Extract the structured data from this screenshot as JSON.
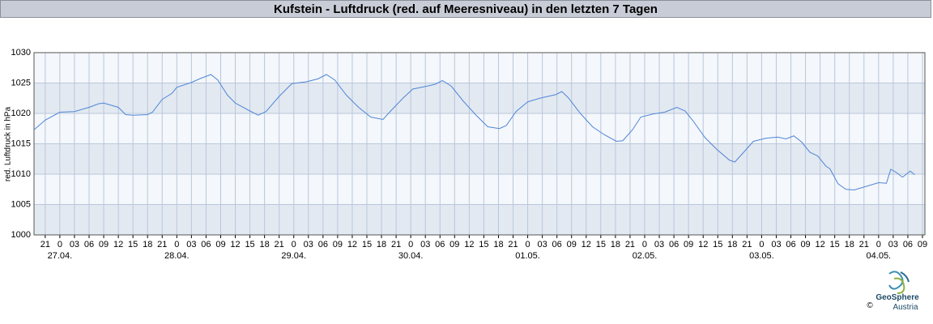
{
  "chart_data": {
    "type": "line",
    "title": "Kufstein - Luftdruck (red. auf Meeresniveau) in den letzten 7 Tagen",
    "y_label": "red. Luftdruck in hPa",
    "ylim": [
      1000,
      1030
    ],
    "yticks": [
      1000,
      1005,
      1010,
      1015,
      1020,
      1025,
      1030
    ],
    "xlim": [
      -5.3,
      177.5
    ],
    "xticks": [
      {
        "value": -3,
        "label": "21"
      },
      {
        "value": 0,
        "label": "0"
      },
      {
        "value": 3,
        "label": "03"
      },
      {
        "value": 6,
        "label": "06"
      },
      {
        "value": 9,
        "label": "09"
      },
      {
        "value": 12,
        "label": "12"
      },
      {
        "value": 15,
        "label": "15"
      },
      {
        "value": 18,
        "label": "18"
      },
      {
        "value": 21,
        "label": "21"
      },
      {
        "value": 24,
        "label": "0"
      },
      {
        "value": 27,
        "label": "03"
      },
      {
        "value": 30,
        "label": "06"
      },
      {
        "value": 33,
        "label": "09"
      },
      {
        "value": 36,
        "label": "12"
      },
      {
        "value": 39,
        "label": "15"
      },
      {
        "value": 42,
        "label": "18"
      },
      {
        "value": 45,
        "label": "21"
      },
      {
        "value": 48,
        "label": "0"
      },
      {
        "value": 51,
        "label": "03"
      },
      {
        "value": 54,
        "label": "06"
      },
      {
        "value": 57,
        "label": "09"
      },
      {
        "value": 60,
        "label": "12"
      },
      {
        "value": 63,
        "label": "15"
      },
      {
        "value": 66,
        "label": "18"
      },
      {
        "value": 69,
        "label": "21"
      },
      {
        "value": 72,
        "label": "0"
      },
      {
        "value": 75,
        "label": "03"
      },
      {
        "value": 78,
        "label": "06"
      },
      {
        "value": 81,
        "label": "09"
      },
      {
        "value": 84,
        "label": "12"
      },
      {
        "value": 87,
        "label": "15"
      },
      {
        "value": 90,
        "label": "18"
      },
      {
        "value": 93,
        "label": "21"
      },
      {
        "value": 96,
        "label": "0"
      },
      {
        "value": 99,
        "label": "03"
      },
      {
        "value": 102,
        "label": "06"
      },
      {
        "value": 105,
        "label": "09"
      },
      {
        "value": 108,
        "label": "12"
      },
      {
        "value": 111,
        "label": "15"
      },
      {
        "value": 114,
        "label": "18"
      },
      {
        "value": 117,
        "label": "21"
      },
      {
        "value": 120,
        "label": "0"
      },
      {
        "value": 123,
        "label": "03"
      },
      {
        "value": 126,
        "label": "06"
      },
      {
        "value": 129,
        "label": "09"
      },
      {
        "value": 132,
        "label": "12"
      },
      {
        "value": 135,
        "label": "15"
      },
      {
        "value": 138,
        "label": "18"
      },
      {
        "value": 141,
        "label": "21"
      },
      {
        "value": 144,
        "label": "0"
      },
      {
        "value": 147,
        "label": "03"
      },
      {
        "value": 150,
        "label": "06"
      },
      {
        "value": 153,
        "label": "09"
      },
      {
        "value": 156,
        "label": "12"
      },
      {
        "value": 159,
        "label": "15"
      },
      {
        "value": 162,
        "label": "18"
      },
      {
        "value": 165,
        "label": "21"
      },
      {
        "value": 168,
        "label": "0"
      },
      {
        "value": 171,
        "label": "03"
      },
      {
        "value": 174,
        "label": "06"
      },
      {
        "value": 177,
        "label": "09"
      }
    ],
    "date_labels": [
      {
        "value": 0,
        "label": "27.04."
      },
      {
        "value": 24,
        "label": "28.04."
      },
      {
        "value": 48,
        "label": "29.04."
      },
      {
        "value": 72,
        "label": "30.04."
      },
      {
        "value": 96,
        "label": "01.05."
      },
      {
        "value": 120,
        "label": "02.05."
      },
      {
        "value": 144,
        "label": "03.05."
      },
      {
        "value": 168,
        "label": "04.05."
      }
    ],
    "grid": true,
    "series": [
      {
        "name": "Luftdruck",
        "color": "#4f86d6",
        "x": [
          -5.3,
          -3,
          0,
          3,
          6,
          8,
          9,
          12,
          13.5,
          15,
          18,
          19,
          21,
          23,
          24,
          27,
          29,
          31,
          32.4,
          34.4,
          36,
          39,
          40.7,
          42.3,
          45,
          47.6,
          50.6,
          53,
          54.7,
          56.4,
          58.8,
          61.3,
          63.8,
          66.3,
          68,
          70.4,
          72.4,
          75.4,
          77,
          78.5,
          80.3,
          82.8,
          85.3,
          87.8,
          90.2,
          91.6,
          93.6,
          96,
          98.5,
          101.8,
          103,
          104.3,
          106.8,
          109.3,
          111.7,
          114.2,
          115.5,
          117.5,
          119.2,
          121.7,
          124.1,
          126.6,
          128.3,
          129.9,
          132.4,
          134.9,
          137.4,
          138.5,
          140.2,
          142.3,
          144.8,
          147.3,
          149,
          150.6,
          152.2,
          153.9,
          155.5,
          157.2,
          158,
          159.7,
          161.3,
          163,
          165.5,
          168,
          169.6,
          170.5,
          171.6,
          172.9,
          174.5,
          175.4
        ],
        "values": [
          1017.3,
          1018.9,
          1020.2,
          1020.3,
          1021,
          1021.6,
          1021.7,
          1021,
          1019.8,
          1019.7,
          1019.8,
          1020.2,
          1022.3,
          1023.3,
          1024.3,
          1025.1,
          1025.8,
          1026.4,
          1025.5,
          1023,
          1021.7,
          1020.4,
          1019.7,
          1020.3,
          1022.8,
          1024.9,
          1025.2,
          1025.7,
          1026.4,
          1025.5,
          1023,
          1021,
          1019.4,
          1019,
          1020.5,
          1022.5,
          1024,
          1024.5,
          1024.8,
          1025.4,
          1024.5,
          1022,
          1019.8,
          1017.8,
          1017.5,
          1018,
          1020.3,
          1021.9,
          1022.5,
          1023.1,
          1023.6,
          1022.6,
          1020,
          1017.8,
          1016.5,
          1015.4,
          1015.5,
          1017.3,
          1019.4,
          1019.9,
          1020.2,
          1021,
          1020.4,
          1018.8,
          1016,
          1014,
          1012.3,
          1012,
          1013.5,
          1015.4,
          1015.9,
          1016.1,
          1015.8,
          1016.3,
          1015.3,
          1013.6,
          1013,
          1011.3,
          1010.9,
          1008.4,
          1007.5,
          1007.4,
          1008,
          1008.6,
          1008.5,
          1010.8,
          1010.3,
          1009.5,
          1010.5,
          1009.9
        ]
      }
    ]
  },
  "logo": {
    "name": "GeoSphere",
    "sub": "Austria",
    "copyright": "©"
  }
}
